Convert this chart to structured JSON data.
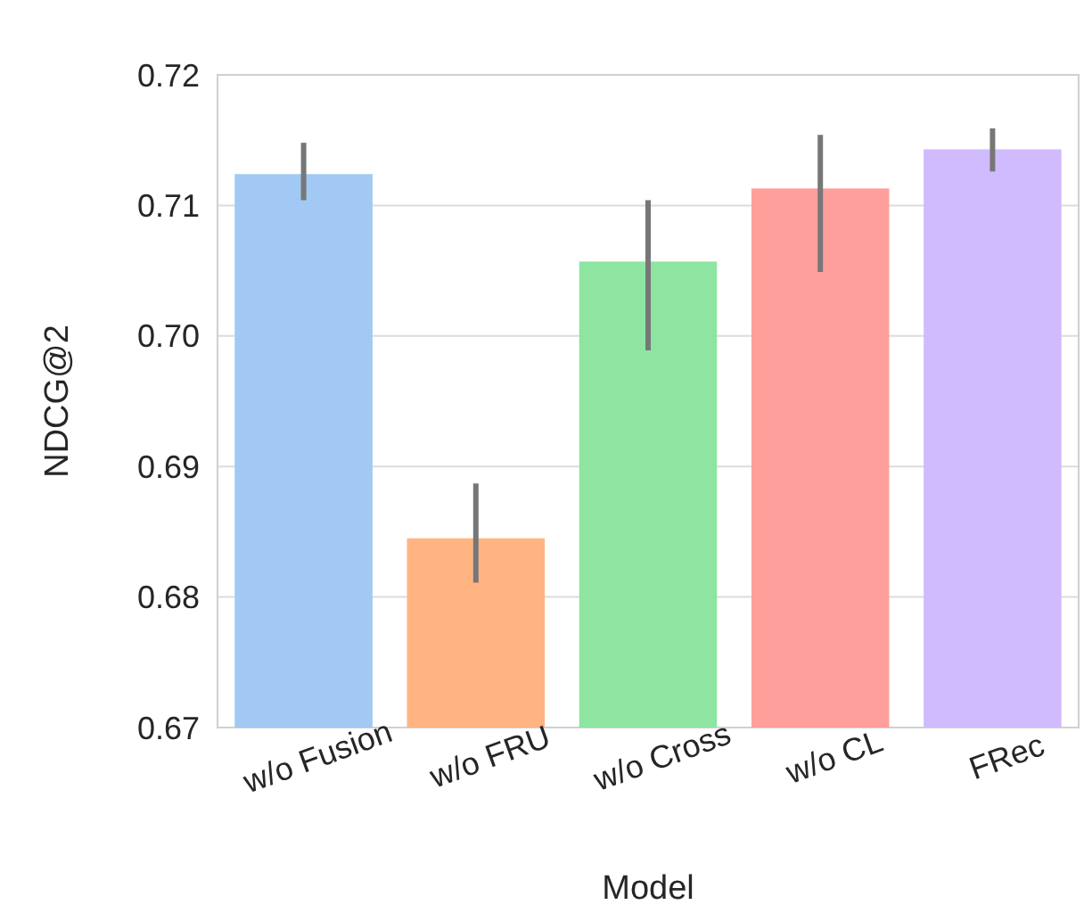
{
  "chart_data": {
    "type": "bar",
    "xlabel": "Model",
    "ylabel": "NDCG@2",
    "categories": [
      "w/o Fusion",
      "w/o FRU",
      "w/o Cross",
      "w/o CL",
      "FRec"
    ],
    "values": [
      0.7124,
      0.6845,
      0.7057,
      0.7113,
      0.7143
    ],
    "errors": [
      [
        0.7104,
        0.7148
      ],
      [
        0.6811,
        0.6887
      ],
      [
        0.6989,
        0.7104
      ],
      [
        0.7049,
        0.7154
      ],
      [
        0.7126,
        0.7159
      ]
    ],
    "colors": [
      "#a1c9f4",
      "#ffb482",
      "#8de5a1",
      "#ff9f9b",
      "#d0bbff"
    ],
    "ylim": [
      0.67,
      0.72
    ],
    "yticks": [
      {
        "value": 0.67,
        "label": "0.67"
      },
      {
        "value": 0.68,
        "label": "0.68"
      },
      {
        "value": 0.69,
        "label": "0.69"
      },
      {
        "value": 0.7,
        "label": "0.70"
      },
      {
        "value": 0.71,
        "label": "0.71"
      },
      {
        "value": 0.72,
        "label": "0.72"
      }
    ],
    "grid": "y"
  }
}
